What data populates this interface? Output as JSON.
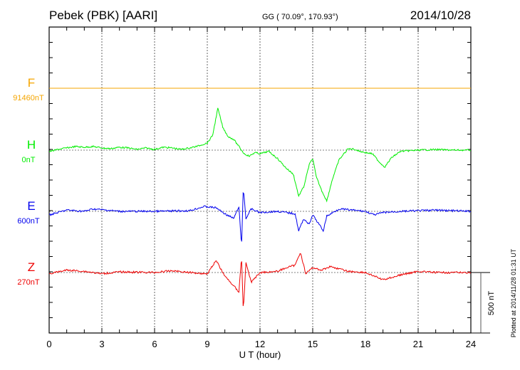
{
  "header": {
    "station": "Pebek (PBK)  [AARI]",
    "coords": "GG ( 70.09°, 170.93°)",
    "date": "2014/10/28"
  },
  "footer": {
    "plotted": "Plotted at 2014/11/28 01:31  UT",
    "scale_label": "500 nT"
  },
  "chart_data": {
    "type": "line",
    "xlabel": "U T (hour)",
    "xlim": [
      0,
      24
    ],
    "xticks": [
      "0",
      "3",
      "6",
      "9",
      "12",
      "15",
      "18",
      "21",
      "24"
    ],
    "scale_nT": 500,
    "grid": true,
    "series": [
      {
        "name": "F",
        "baseline_label": "91460nT",
        "color": "#f5a500",
        "points": [
          [
            0,
            0
          ],
          [
            24,
            0
          ]
        ]
      },
      {
        "name": "H",
        "baseline_label": "0nT",
        "color": "#00ee00",
        "points": [
          [
            0,
            -12
          ],
          [
            0.5,
            6
          ],
          [
            1,
            18
          ],
          [
            1.5,
            30
          ],
          [
            2,
            24
          ],
          [
            2.5,
            30
          ],
          [
            3,
            18
          ],
          [
            3.5,
            12
          ],
          [
            4,
            24
          ],
          [
            4.5,
            18
          ],
          [
            5,
            6
          ],
          [
            5.5,
            18
          ],
          [
            6,
            6
          ],
          [
            6.5,
            24
          ],
          [
            7,
            18
          ],
          [
            7.5,
            6
          ],
          [
            8,
            18
          ],
          [
            8.5,
            35
          ],
          [
            9,
            60
          ],
          [
            9.3,
            120
          ],
          [
            9.6,
            345
          ],
          [
            9.9,
            180
          ],
          [
            10.2,
            110
          ],
          [
            10.5,
            90
          ],
          [
            10.8,
            30
          ],
          [
            11.1,
            -30
          ],
          [
            11.4,
            -50
          ],
          [
            11.7,
            -20
          ],
          [
            12,
            -30
          ],
          [
            12.5,
            -10
          ],
          [
            13,
            -70
          ],
          [
            13.5,
            -150
          ],
          [
            13.9,
            -200
          ],
          [
            14.2,
            -380
          ],
          [
            14.5,
            -300
          ],
          [
            14.8,
            -120
          ],
          [
            15,
            -70
          ],
          [
            15.2,
            -220
          ],
          [
            15.5,
            -330
          ],
          [
            15.8,
            -420
          ],
          [
            16.1,
            -250
          ],
          [
            16.5,
            -80
          ],
          [
            17,
            10
          ],
          [
            17.3,
            10
          ],
          [
            17.7,
            -10
          ],
          [
            18,
            -20
          ],
          [
            18.4,
            -30
          ],
          [
            18.8,
            -100
          ],
          [
            19.1,
            -140
          ],
          [
            19.5,
            -60
          ],
          [
            20,
            -10
          ],
          [
            21,
            0
          ],
          [
            22,
            5
          ],
          [
            23,
            0
          ],
          [
            24,
            0
          ]
        ]
      },
      {
        "name": "E",
        "baseline_label": "600nT",
        "color": "#0000ee",
        "points": [
          [
            0,
            -30
          ],
          [
            1,
            10
          ],
          [
            2,
            0
          ],
          [
            2.5,
            20
          ],
          [
            4,
            0
          ],
          [
            6,
            0
          ],
          [
            8,
            5
          ],
          [
            8.8,
            40
          ],
          [
            9.5,
            30
          ],
          [
            10,
            -20
          ],
          [
            10.5,
            -60
          ],
          [
            10.8,
            40
          ],
          [
            10.95,
            -300
          ],
          [
            11.05,
            200
          ],
          [
            11.2,
            -60
          ],
          [
            11.5,
            20
          ],
          [
            12,
            -10
          ],
          [
            13,
            0
          ],
          [
            14,
            -20
          ],
          [
            14.2,
            -160
          ],
          [
            14.5,
            -60
          ],
          [
            14.8,
            -110
          ],
          [
            15,
            -30
          ],
          [
            15.6,
            -160
          ],
          [
            15.8,
            -40
          ],
          [
            16.5,
            20
          ],
          [
            18,
            0
          ],
          [
            18.5,
            -30
          ],
          [
            19,
            -10
          ],
          [
            20,
            0
          ],
          [
            22,
            10
          ],
          [
            24,
            0
          ]
        ]
      },
      {
        "name": "Z",
        "baseline_label": "270nT",
        "color": "#ee0000",
        "points": [
          [
            0,
            -10
          ],
          [
            1,
            20
          ],
          [
            2,
            10
          ],
          [
            3,
            -10
          ],
          [
            4,
            5
          ],
          [
            6,
            0
          ],
          [
            7,
            15
          ],
          [
            8,
            0
          ],
          [
            9,
            -10
          ],
          [
            9.5,
            100
          ],
          [
            10,
            -30
          ],
          [
            10.5,
            -110
          ],
          [
            10.8,
            -160
          ],
          [
            10.95,
            140
          ],
          [
            11.05,
            -320
          ],
          [
            11.2,
            80
          ],
          [
            11.5,
            -80
          ],
          [
            12,
            0
          ],
          [
            13,
            10
          ],
          [
            13.5,
            40
          ],
          [
            14,
            60
          ],
          [
            14.3,
            170
          ],
          [
            14.6,
            -10
          ],
          [
            15,
            40
          ],
          [
            15.5,
            20
          ],
          [
            16,
            50
          ],
          [
            17,
            10
          ],
          [
            18,
            0
          ],
          [
            18.5,
            -30
          ],
          [
            19,
            -60
          ],
          [
            19.5,
            -40
          ],
          [
            20,
            -20
          ],
          [
            21,
            10
          ],
          [
            22,
            0
          ],
          [
            24,
            0
          ]
        ]
      }
    ]
  }
}
